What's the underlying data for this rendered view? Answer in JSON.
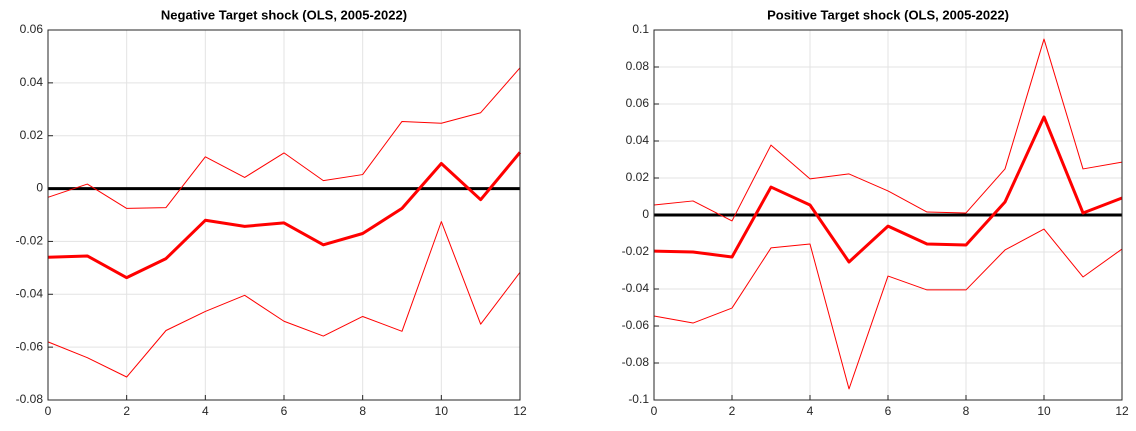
{
  "chart_data": [
    {
      "type": "line",
      "title": "Negative Target shock (OLS, 2005-2022)",
      "x": [
        0,
        1,
        2,
        3,
        4,
        5,
        6,
        7,
        8,
        9,
        10,
        11,
        12
      ],
      "xlim": [
        0,
        12
      ],
      "xticks": [
        0,
        2,
        4,
        6,
        8,
        10,
        12
      ],
      "ylim": [
        -0.08,
        0.06
      ],
      "yticks": [
        -0.08,
        -0.06,
        -0.04,
        -0.02,
        0,
        0.02,
        0.04,
        0.06
      ],
      "grid": true,
      "reference_line": 0,
      "reference_color": "#000000",
      "series": [
        {
          "color": "#ff0000",
          "width": 3,
          "values": [
            -0.026,
            -0.0255,
            -0.0337,
            -0.0265,
            -0.012,
            -0.0143,
            -0.013,
            -0.0213,
            -0.017,
            -0.0075,
            0.0095,
            -0.0042,
            0.0137
          ]
        },
        {
          "color": "#ff0000",
          "width": 1,
          "values": [
            -0.0033,
            0.0017,
            -0.0075,
            -0.0072,
            0.012,
            0.0042,
            0.0135,
            0.003,
            0.0053,
            0.0254,
            0.0247,
            0.0287,
            0.0457
          ]
        },
        {
          "color": "#ff0000",
          "width": 1,
          "values": [
            -0.058,
            -0.064,
            -0.0713,
            -0.0537,
            -0.0465,
            -0.0404,
            -0.0502,
            -0.0558,
            -0.0484,
            -0.054,
            -0.0125,
            -0.0513,
            -0.0317
          ]
        }
      ]
    },
    {
      "type": "line",
      "title": "Positive Target shock (OLS, 2005-2022)",
      "x": [
        0,
        1,
        2,
        3,
        4,
        5,
        6,
        7,
        8,
        9,
        10,
        11,
        12
      ],
      "xlim": [
        0,
        12
      ],
      "xticks": [
        0,
        2,
        4,
        6,
        8,
        10,
        12
      ],
      "ylim": [
        -0.1,
        0.1
      ],
      "yticks": [
        -0.1,
        -0.08,
        -0.06,
        -0.04,
        -0.02,
        0,
        0.02,
        0.04,
        0.06,
        0.08,
        0.1
      ],
      "grid": true,
      "reference_line": 0,
      "reference_color": "#000000",
      "series": [
        {
          "color": "#ff0000",
          "width": 3,
          "values": [
            -0.0195,
            -0.02,
            -0.0227,
            0.0151,
            0.0054,
            -0.0254,
            -0.006,
            -0.0157,
            -0.0162,
            0.007,
            0.053,
            0.0011,
            0.0092
          ]
        },
        {
          "color": "#ff0000",
          "width": 1,
          "values": [
            0.0054,
            0.0076,
            -0.0032,
            0.0378,
            0.0195,
            0.0222,
            0.013,
            0.0016,
            0.0011,
            0.0249,
            0.0951,
            0.0249,
            0.0286
          ]
        },
        {
          "color": "#ff0000",
          "width": 1,
          "values": [
            -0.0546,
            -0.0584,
            -0.0503,
            -0.0178,
            -0.0157,
            -0.094,
            -0.033,
            -0.0405,
            -0.0405,
            -0.0189,
            -0.0076,
            -0.0335,
            -0.0184
          ]
        }
      ]
    }
  ]
}
